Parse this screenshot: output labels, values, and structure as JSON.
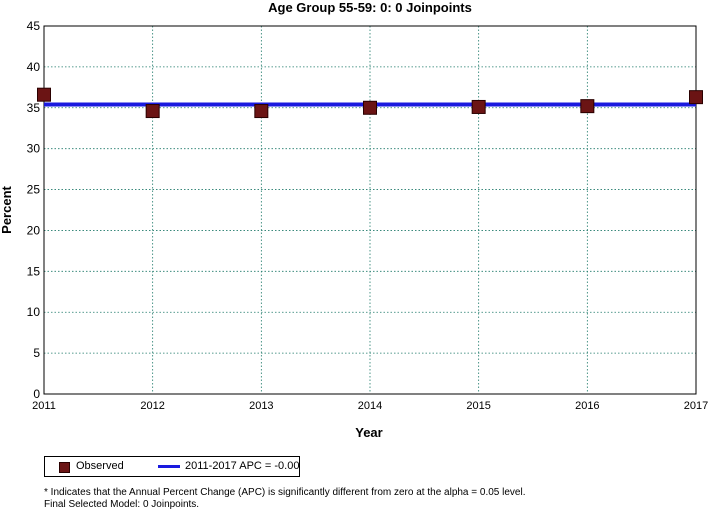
{
  "chart_data": {
    "type": "scatter",
    "title": "Age Group 55-59: 0: 0 Joinpoints",
    "xlabel": "Year",
    "ylabel": "Percent",
    "xlim": [
      2011,
      2017
    ],
    "ylim": [
      0,
      45
    ],
    "x_ticks": [
      "2011",
      "2012",
      "2013",
      "2014",
      "2015",
      "2016",
      "2017"
    ],
    "y_ticks": [
      "0",
      "5",
      "10",
      "15",
      "20",
      "25",
      "30",
      "35",
      "40",
      "45"
    ],
    "grid": true,
    "series": [
      {
        "name": "Observed",
        "kind": "points",
        "color": "#6b1414",
        "x": [
          2011,
          2012,
          2013,
          2014,
          2015,
          2016,
          2017
        ],
        "y": [
          36.6,
          34.6,
          34.6,
          35.0,
          35.1,
          35.2,
          36.3
        ]
      },
      {
        "name": "2011-2017 APC  = -0.00",
        "kind": "line",
        "color": "#1a1adf",
        "x": [
          2011,
          2017
        ],
        "y": [
          35.4,
          35.4
        ]
      }
    ],
    "legend_position": "bottom-left"
  },
  "footnotes": {
    "line1": "* Indicates that the Annual Percent Change (APC) is significantly different from zero at the alpha = 0.05 level.",
    "line2": "Final Selected Model: 0 Joinpoints."
  }
}
